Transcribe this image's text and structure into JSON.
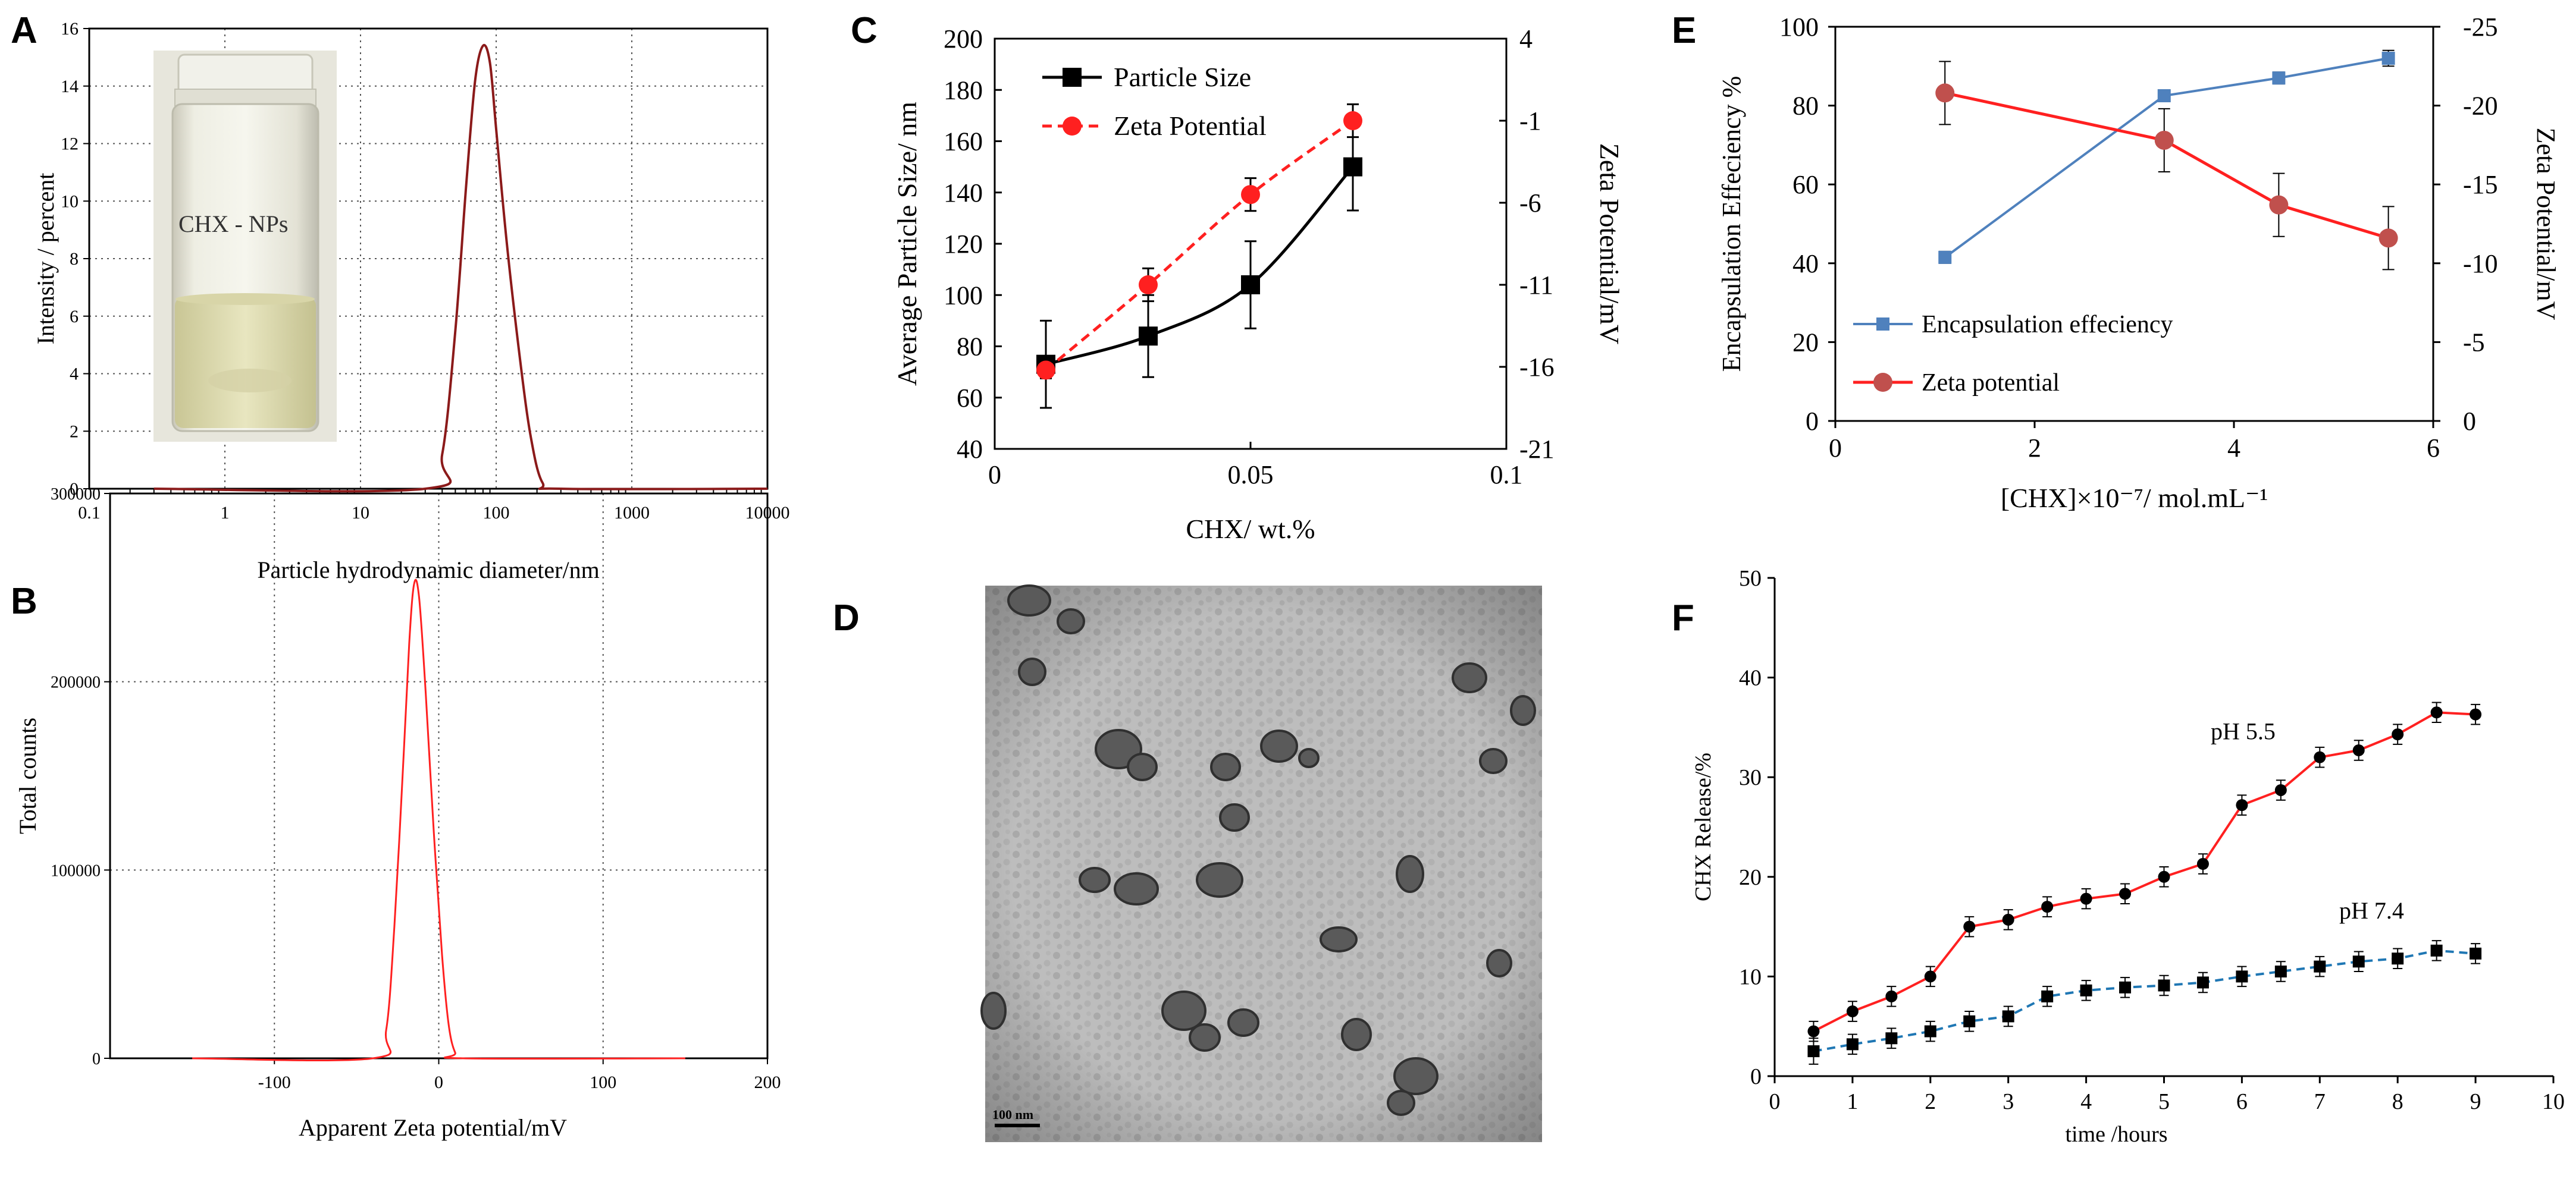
{
  "panels": {
    "A": {
      "letter": "A",
      "vial_label": "CHX - NPs",
      "chart_data": {
        "type": "line",
        "title": "",
        "xlabel": "Particle hydrodynamic diameter/nm",
        "ylabel": "Intensity / percent",
        "xscale": "log",
        "xlim": [
          0.1,
          10000
        ],
        "ylim": [
          0,
          16
        ],
        "xticks": [
          0.1,
          1,
          10,
          100,
          1000,
          10000
        ],
        "xtick_labels": [
          "0.1",
          "1",
          "10",
          "100",
          "1000",
          "10000"
        ],
        "yticks": [
          0,
          2,
          4,
          6,
          8,
          10,
          12,
          14,
          16
        ],
        "ytick_labels": [
          "0",
          "2",
          "4",
          "6",
          "8",
          "10",
          "12",
          "14",
          "16"
        ],
        "grid": true,
        "series": [
          {
            "name": "size distribution",
            "color": "#8b1a1a",
            "x": [
              0.3,
              30,
              40,
              50,
              60,
              70,
              80,
              90,
              100,
              120,
              150,
              180,
              220,
              300,
              10000
            ],
            "y": [
              0,
              0,
              1.2,
              5.5,
              10.5,
              14.2,
              15.4,
              14.8,
              12.5,
              8.5,
              4.5,
              1.8,
              0.2,
              0,
              0
            ]
          }
        ]
      }
    },
    "B": {
      "letter": "B",
      "chart_data": {
        "type": "line",
        "title": "",
        "xlabel": "Apparent Zeta potential/mV",
        "ylabel": "Total counts",
        "xlim": [
          -200,
          200
        ],
        "ylim": [
          0,
          300000
        ],
        "xticks": [
          -100,
          0,
          100,
          200
        ],
        "xtick_labels": [
          "-100",
          "0",
          "100",
          "200"
        ],
        "yticks": [
          0,
          100000,
          200000,
          300000
        ],
        "ytick_labels": [
          "0",
          "100000",
          "200000",
          "300000"
        ],
        "grid": true,
        "series": [
          {
            "name": "zeta distribution",
            "color": "#ff2020",
            "x": [
              -150,
              -40,
              -32,
              -27,
              -22,
              -18,
              -15,
              -12,
              -8,
              -3,
              2,
              6,
              10,
              15,
              150
            ],
            "y": [
              0,
              0,
              15000,
              70000,
              150000,
              220000,
              252000,
              245000,
              195000,
              120000,
              55000,
              18000,
              3000,
              0,
              0
            ]
          }
        ]
      }
    },
    "C": {
      "letter": "C",
      "chart_data": {
        "type": "line",
        "title": "",
        "xlabel": "CHX/ wt.%",
        "ylabel": "Average Particle Size/ nm",
        "y2label": "Zeta Potential/mV",
        "xlim": [
          0,
          0.1
        ],
        "ylim": [
          40,
          200
        ],
        "y2lim": [
          -21,
          4
        ],
        "xticks": [
          0,
          0.05,
          0.1
        ],
        "xtick_labels": [
          "0",
          "0.05",
          "0.1"
        ],
        "yticks": [
          40,
          60,
          80,
          100,
          120,
          140,
          160,
          180,
          200
        ],
        "ytick_labels": [
          "40",
          "60",
          "80",
          "100",
          "120",
          "140",
          "160",
          "180",
          "200"
        ],
        "y2ticks": [
          -21,
          -16,
          -11,
          -6,
          -1,
          4
        ],
        "y2tick_labels": [
          "-21",
          "-16",
          "-11",
          "-6",
          "-1",
          "4"
        ],
        "legend_position": "top-left",
        "series": [
          {
            "name": "Particle Size",
            "axis": "left",
            "color": "#000000",
            "marker": "square",
            "dash": "solid",
            "x": [
              0.01,
              0.03,
              0.05,
              0.07
            ],
            "y": [
              73,
              84,
              104,
              150
            ],
            "err": [
              17,
              16,
              17,
              17
            ]
          },
          {
            "name": "Zeta Potential",
            "axis": "right",
            "color": "#ff2020",
            "marker": "circle",
            "dash": "dashed",
            "x": [
              0.01,
              0.03,
              0.05,
              0.07
            ],
            "y": [
              -16.2,
              -11.0,
              -5.5,
              -1.0
            ],
            "err": [
              0.5,
              1.0,
              1.0,
              1.0
            ]
          }
        ]
      }
    },
    "D": {
      "letter": "D",
      "scale_bar_label": "100 nm"
    },
    "E": {
      "letter": "E",
      "chart_data": {
        "type": "line",
        "title": "",
        "xlabel": "[CHX]×10⁻⁷/ mol.mL⁻¹",
        "ylabel": "Encapsulation Effeciency %",
        "y2label": "Zeta Potential/mV",
        "xlim": [
          0,
          6
        ],
        "ylim": [
          0,
          100
        ],
        "y2lim": [
          0,
          -25
        ],
        "xticks": [
          0,
          2,
          4,
          6
        ],
        "xtick_labels": [
          "0",
          "2",
          "4",
          "6"
        ],
        "yticks": [
          0,
          20,
          40,
          60,
          80,
          100
        ],
        "ytick_labels": [
          "0",
          "20",
          "40",
          "60",
          "80",
          "100"
        ],
        "y2ticks": [
          0,
          -5,
          -10,
          -15,
          -20,
          -25
        ],
        "y2tick_labels": [
          "0",
          "-5",
          "-10",
          "-15",
          "-20",
          "-25"
        ],
        "legend_position": "bottom-left",
        "series": [
          {
            "name": "Encapsulation effeciency",
            "axis": "left",
            "color": "#4f81bd",
            "marker": "square",
            "x": [
              1.1,
              3.3,
              4.45,
              5.55
            ],
            "y": [
              41.5,
              82.5,
              87,
              92
            ],
            "err": [
              1.5,
              1.5,
              1.5,
              2.0
            ]
          },
          {
            "name": "Zeta potential",
            "axis": "right",
            "color": "#ff2020",
            "marker": "circle",
            "marker_color": "#c0504d",
            "x": [
              1.1,
              3.3,
              4.45,
              5.55
            ],
            "y": [
              -20.8,
              -17.8,
              -13.7,
              -11.6
            ],
            "err": [
              2.0,
              2.0,
              2.0,
              2.0
            ]
          }
        ]
      }
    },
    "F": {
      "letter": "F",
      "chart_data": {
        "type": "line",
        "title": "",
        "xlabel": "time /hours",
        "ylabel": "CHX Release/%",
        "xlim": [
          0,
          10
        ],
        "ylim": [
          0,
          50
        ],
        "xticks": [
          0,
          1,
          2,
          3,
          4,
          5,
          6,
          7,
          8,
          9,
          10
        ],
        "xtick_labels": [
          "0",
          "1",
          "2",
          "3",
          "4",
          "5",
          "6",
          "7",
          "8",
          "9",
          "10"
        ],
        "yticks": [
          0,
          10,
          20,
          30,
          40,
          50
        ],
        "ytick_labels": [
          "0",
          "10",
          "20",
          "30",
          "40",
          "50"
        ],
        "annotations": [
          "pH 5.5",
          "pH 7.4"
        ],
        "series": [
          {
            "name": "pH 5.5",
            "color": "#ff2020",
            "marker": "circle",
            "dash": "solid",
            "x": [
              0.5,
              1,
              1.5,
              2,
              2.5,
              3,
              3.5,
              4,
              4.5,
              5,
              5.5,
              6,
              6.5,
              7,
              7.5,
              8,
              8.5,
              9
            ],
            "y": [
              4.5,
              6.5,
              8,
              10,
              15,
              15.7,
              17,
              17.8,
              18.3,
              20,
              21.3,
              27.2,
              28.7,
              32,
              32.7,
              34.3,
              36.5,
              36.3
            ],
            "err": [
              1,
              1,
              1,
              1,
              1,
              1,
              1,
              1,
              1,
              1,
              1,
              1,
              1,
              1,
              1,
              1,
              1,
              1
            ]
          },
          {
            "name": "pH 7.4",
            "color": "#1f77b4",
            "marker": "square",
            "dash": "dashed",
            "x": [
              0.5,
              1,
              1.5,
              2,
              2.5,
              3,
              3.5,
              4,
              4.5,
              5,
              5.5,
              6,
              6.5,
              7,
              7.5,
              8,
              8.5,
              9
            ],
            "y": [
              2.5,
              3.2,
              3.8,
              4.5,
              5.5,
              6,
              8,
              8.6,
              8.9,
              9.1,
              9.4,
              10,
              10.5,
              11,
              11.5,
              11.8,
              12.6,
              12.3
            ],
            "err": [
              1.3,
              1,
              1,
              1,
              1,
              1,
              1,
              1,
              1,
              1,
              1,
              1,
              1,
              1,
              1,
              1,
              1,
              1
            ]
          }
        ]
      }
    }
  }
}
